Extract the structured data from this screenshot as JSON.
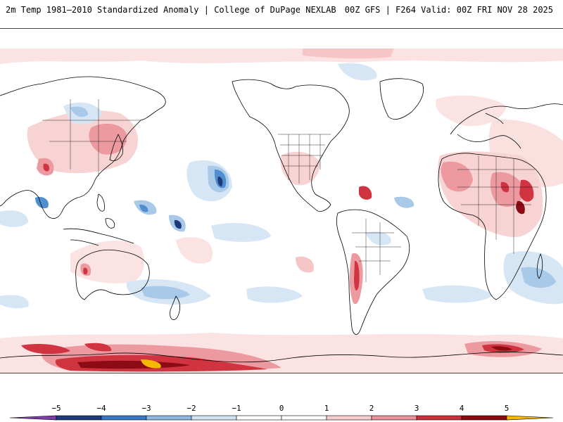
{
  "header": {
    "title_left": "2m Temp 1981–2010 Standardized Anomaly | College of DuPage NEXLAB",
    "title_right": "00Z GFS | F264 Valid: 00Z FRI NOV 28 2025"
  },
  "colorbar": {
    "ticks": [
      "−5",
      "−4",
      "−3",
      "−2",
      "−1",
      "0",
      "1",
      "2",
      "3",
      "4",
      "5"
    ],
    "colors": [
      "#7b3fa8",
      "#1f3a78",
      "#3b78c4",
      "#8fb8e0",
      "#d3e3f3",
      "#ffffff",
      "#ffffff",
      "#f6cccc",
      "#e8929a",
      "#c8303a",
      "#8b0a12",
      "#f5b800"
    ]
  },
  "palette": {
    "land_outline": "#000000",
    "cold_1": "#d7e6f5",
    "cold_2": "#a9c9e9",
    "cold_3": "#4f8fd0",
    "cold_4": "#1f3a78",
    "warm_1": "#f8d3d3",
    "warm_2": "#ec9aa0",
    "warm_3": "#cf3440",
    "warm_4": "#8d0b14",
    "warm_5": "#f5b800"
  }
}
